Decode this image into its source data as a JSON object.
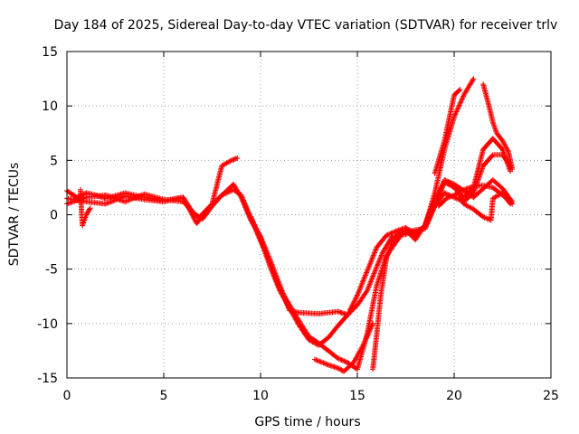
{
  "chart_data": {
    "type": "scatter",
    "title": "Day 184 of 2025, Sidereal Day-to-day VTEC variation (SDTVAR) for receiver trlv",
    "xlabel": "GPS time / hours",
    "ylabel": "SDTVAR / TECUs",
    "xlim": [
      0,
      25
    ],
    "ylim": [
      -15,
      15
    ],
    "xticks": [
      "0",
      "5",
      "10",
      "15",
      "20",
      "25"
    ],
    "yticks": [
      "15",
      "10",
      "5",
      "0",
      "-5",
      "-10",
      "-15"
    ],
    "grid": true,
    "marker": "plus",
    "color": "#ff0000",
    "series": [
      {
        "values": [
          [
            0,
            2.2
          ],
          [
            0.5,
            1.6
          ],
          [
            1,
            2.0
          ],
          [
            1.5,
            1.8
          ],
          [
            2,
            1.5
          ],
          [
            3,
            2.0
          ],
          [
            4,
            1.6
          ],
          [
            5,
            1.3
          ],
          [
            6,
            1.6
          ],
          [
            6.5,
            0.2
          ],
          [
            7,
            -0.4
          ],
          [
            7.5,
            0.8
          ],
          [
            8,
            1.8
          ],
          [
            8.6,
            2.8
          ],
          [
            9,
            1.6
          ],
          [
            9.5,
            -0.5
          ],
          [
            10,
            -2.0
          ],
          [
            10.5,
            -4.2
          ],
          [
            11,
            -6.5
          ],
          [
            11.5,
            -8.8
          ],
          [
            12,
            -9.0
          ],
          [
            13,
            -9.1
          ],
          [
            14,
            -8.9
          ],
          [
            14.5,
            -9.2
          ],
          [
            15,
            -7.4
          ],
          [
            15.5,
            -5.2
          ],
          [
            16,
            -3.0
          ],
          [
            16.5,
            -1.9
          ],
          [
            17,
            -1.5
          ],
          [
            17.5,
            -1.2
          ],
          [
            18,
            -1.9
          ],
          [
            18.5,
            -1.0
          ],
          [
            19,
            2.0
          ],
          [
            19.5,
            6.0
          ],
          [
            20,
            9.0
          ],
          [
            20.5,
            11.0
          ],
          [
            21,
            12.5
          ]
        ]
      },
      {
        "values": [
          [
            0,
            1.5
          ],
          [
            1,
            1.2
          ],
          [
            2,
            1.0
          ],
          [
            3,
            1.7
          ],
          [
            4,
            1.4
          ],
          [
            5,
            1.2
          ],
          [
            6,
            1.6
          ],
          [
            6.7,
            -0.8
          ],
          [
            7.2,
            0.4
          ],
          [
            8,
            1.8
          ],
          [
            8.6,
            2.3
          ],
          [
            9,
            1.8
          ],
          [
            9.5,
            -0.3
          ],
          [
            10,
            -2.4
          ],
          [
            10.5,
            -4.5
          ],
          [
            11,
            -6.8
          ],
          [
            11.5,
            -8.3
          ],
          [
            12,
            -9.8
          ],
          [
            12.5,
            -11.2
          ],
          [
            13,
            -11.8
          ],
          [
            13.5,
            -12.5
          ],
          [
            14,
            -13.2
          ],
          [
            14.5,
            -13.6
          ],
          [
            15,
            -14.2
          ],
          [
            15.5,
            -11.0
          ],
          [
            16,
            -6.5
          ],
          [
            16.5,
            -3.8
          ],
          [
            17,
            -2.5
          ],
          [
            17.5,
            -1.3
          ],
          [
            18,
            -1.6
          ],
          [
            18.5,
            -1.1
          ],
          [
            19,
            0.8
          ],
          [
            19.5,
            3.0
          ],
          [
            20,
            2.5
          ],
          [
            20.5,
            1.6
          ],
          [
            21,
            2.5
          ],
          [
            21.5,
            6.0
          ],
          [
            22,
            7.0
          ],
          [
            22.5,
            6.0
          ],
          [
            22.9,
            4.0
          ]
        ]
      },
      {
        "values": [
          [
            0,
            1.0
          ],
          [
            1,
            1.6
          ],
          [
            2,
            1.8
          ],
          [
            3,
            1.2
          ],
          [
            4,
            1.9
          ],
          [
            5,
            1.4
          ],
          [
            6,
            1.2
          ],
          [
            6.8,
            -0.3
          ],
          [
            7.5,
            1.0
          ],
          [
            8,
            4.5
          ],
          [
            8.5,
            5.0
          ],
          [
            8.8,
            5.2
          ]
        ]
      },
      {
        "values": [
          [
            0.7,
            2.3
          ],
          [
            0.75,
            0.5
          ],
          [
            0.8,
            -1.0
          ],
          [
            1.0,
            0.0
          ],
          [
            1.2,
            0.6
          ]
        ]
      },
      {
        "values": [
          [
            9.5,
            -0.2
          ],
          [
            10,
            -2.2
          ],
          [
            10.5,
            -4.8
          ],
          [
            11,
            -7.0
          ],
          [
            11.5,
            -8.6
          ],
          [
            12,
            -10.2
          ],
          [
            12.5,
            -11.5
          ],
          [
            13,
            -12.0
          ],
          [
            13.5,
            -11.3
          ],
          [
            14,
            -10.2
          ],
          [
            14.5,
            -9.2
          ],
          [
            15,
            -8.3
          ],
          [
            15.5,
            -7.0
          ],
          [
            16,
            -4.8
          ],
          [
            16.3,
            -3.5
          ],
          [
            16.8,
            -2.0
          ],
          [
            17.5,
            -1.8
          ],
          [
            18,
            -1.4
          ],
          [
            18.5,
            -1.3
          ],
          [
            19,
            0.8
          ],
          [
            19.5,
            2.0
          ],
          [
            20,
            1.6
          ],
          [
            20.5,
            1.2
          ],
          [
            21,
            2.0
          ],
          [
            21.5,
            4.5
          ],
          [
            22,
            5.5
          ],
          [
            22.5,
            5.5
          ],
          [
            22.9,
            4.5
          ]
        ]
      },
      {
        "values": [
          [
            12.8,
            -13.3
          ],
          [
            13.5,
            -13.8
          ],
          [
            14,
            -14.1
          ],
          [
            14.3,
            -14.4
          ],
          [
            14.8,
            -13.6
          ],
          [
            15.3,
            -12.0
          ],
          [
            15.8,
            -10.0
          ]
        ]
      },
      {
        "values": [
          [
            15.8,
            -14.2
          ],
          [
            16,
            -11.0
          ],
          [
            16.2,
            -7.5
          ],
          [
            16.5,
            -4.0
          ],
          [
            16.8,
            -2.5
          ],
          [
            17.2,
            -1.5
          ],
          [
            17.5,
            -1.4
          ],
          [
            18,
            -2.3
          ],
          [
            18.5,
            -0.9
          ],
          [
            19,
            1.4
          ],
          [
            19.5,
            3.0
          ],
          [
            20,
            2.8
          ],
          [
            20.5,
            2.2
          ],
          [
            21,
            1.6
          ],
          [
            21.5,
            2.4
          ],
          [
            22,
            3.2
          ],
          [
            22.5,
            2.4
          ],
          [
            23,
            1.2
          ]
        ]
      },
      {
        "values": [
          [
            18.5,
            -1.0
          ],
          [
            19,
            0.9
          ],
          [
            19.5,
            3.2
          ],
          [
            20,
            2.8
          ],
          [
            20.5,
            1.0
          ],
          [
            21,
            0.5
          ],
          [
            21.5,
            -0.2
          ],
          [
            21.9,
            -0.5
          ],
          [
            22,
            1.5
          ],
          [
            22.5,
            2.0
          ],
          [
            22.9,
            1.0
          ]
        ]
      },
      {
        "values": [
          [
            19,
            3.8
          ],
          [
            19.5,
            6.8
          ],
          [
            20,
            11.0
          ],
          [
            20.3,
            11.5
          ]
        ]
      },
      {
        "values": [
          [
            21.5,
            12.0
          ],
          [
            21.8,
            10.0
          ],
          [
            22,
            8.5
          ],
          [
            22.2,
            7.5
          ],
          [
            22.5,
            6.8
          ],
          [
            22.8,
            5.8
          ],
          [
            23,
            4.2
          ]
        ]
      },
      {
        "values": [
          [
            19.2,
            0.8
          ],
          [
            19.6,
            1.5
          ],
          [
            20,
            1.8
          ],
          [
            20.5,
            2.3
          ],
          [
            21,
            2.6
          ],
          [
            21.5,
            2.7
          ],
          [
            22,
            2.5
          ],
          [
            22.5,
            1.8
          ],
          [
            23,
            1.0
          ]
        ]
      }
    ]
  }
}
